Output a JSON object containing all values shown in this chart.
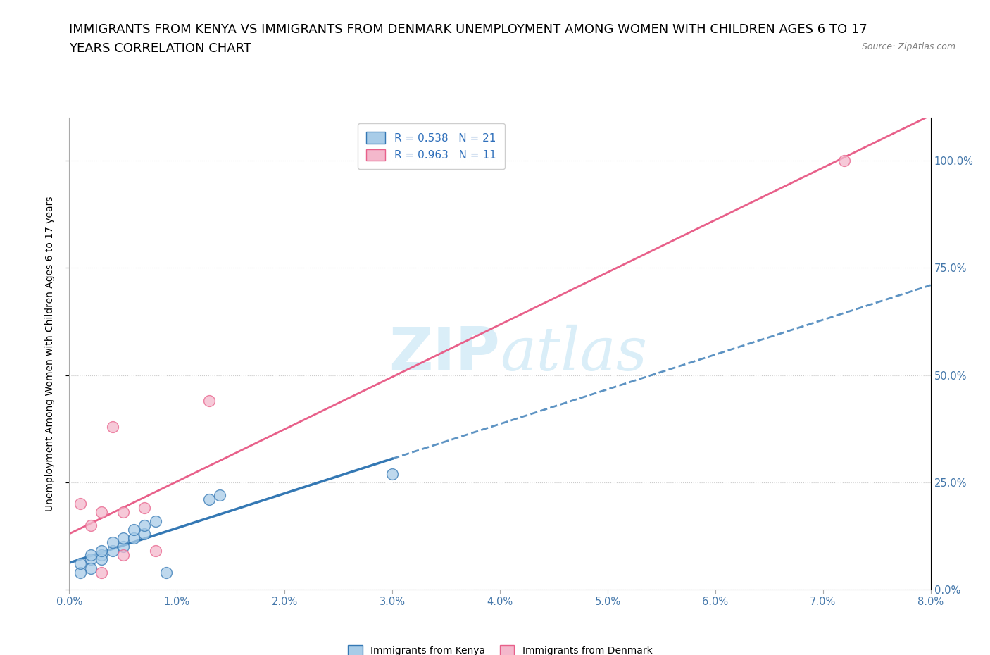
{
  "title_line1": "IMMIGRANTS FROM KENYA VS IMMIGRANTS FROM DENMARK UNEMPLOYMENT AMONG WOMEN WITH CHILDREN AGES 6 TO 17",
  "title_line2": "YEARS CORRELATION CHART",
  "source": "Source: ZipAtlas.com",
  "ylabel": "Unemployment Among Women with Children Ages 6 to 17 years",
  "xlim": [
    0.0,
    0.08
  ],
  "ylim": [
    0.0,
    1.1
  ],
  "xticks": [
    0.0,
    0.01,
    0.02,
    0.03,
    0.04,
    0.05,
    0.06,
    0.07,
    0.08
  ],
  "ytick_positions": [
    0.0,
    0.25,
    0.5,
    0.75,
    1.0
  ],
  "ytick_labels": [
    "0.0%",
    "25.0%",
    "50.0%",
    "75.0%",
    "100.0%"
  ],
  "kenya_R": 0.538,
  "kenya_N": 21,
  "denmark_R": 0.963,
  "denmark_N": 11,
  "kenya_color": "#a8cce8",
  "denmark_color": "#f4b8cc",
  "kenya_line_color": "#3478b4",
  "denmark_line_color": "#e8608a",
  "background_color": "#ffffff",
  "watermark_color": "#daeef8",
  "kenya_x": [
    0.001,
    0.001,
    0.002,
    0.002,
    0.002,
    0.003,
    0.003,
    0.003,
    0.004,
    0.004,
    0.005,
    0.005,
    0.006,
    0.006,
    0.007,
    0.007,
    0.008,
    0.009,
    0.013,
    0.014,
    0.03
  ],
  "kenya_y": [
    0.04,
    0.06,
    0.07,
    0.05,
    0.08,
    0.08,
    0.07,
    0.09,
    0.09,
    0.11,
    0.1,
    0.12,
    0.12,
    0.14,
    0.13,
    0.15,
    0.16,
    0.04,
    0.21,
    0.22,
    0.27
  ],
  "denmark_x": [
    0.001,
    0.002,
    0.003,
    0.003,
    0.004,
    0.005,
    0.005,
    0.007,
    0.008,
    0.013,
    0.072
  ],
  "denmark_y": [
    0.2,
    0.15,
    0.18,
    0.04,
    0.38,
    0.18,
    0.08,
    0.19,
    0.09,
    0.44,
    1.0
  ],
  "grid_color": "#cccccc",
  "title_fontsize": 13,
  "axis_label_fontsize": 10,
  "tick_fontsize": 10.5,
  "legend_fontsize": 11
}
